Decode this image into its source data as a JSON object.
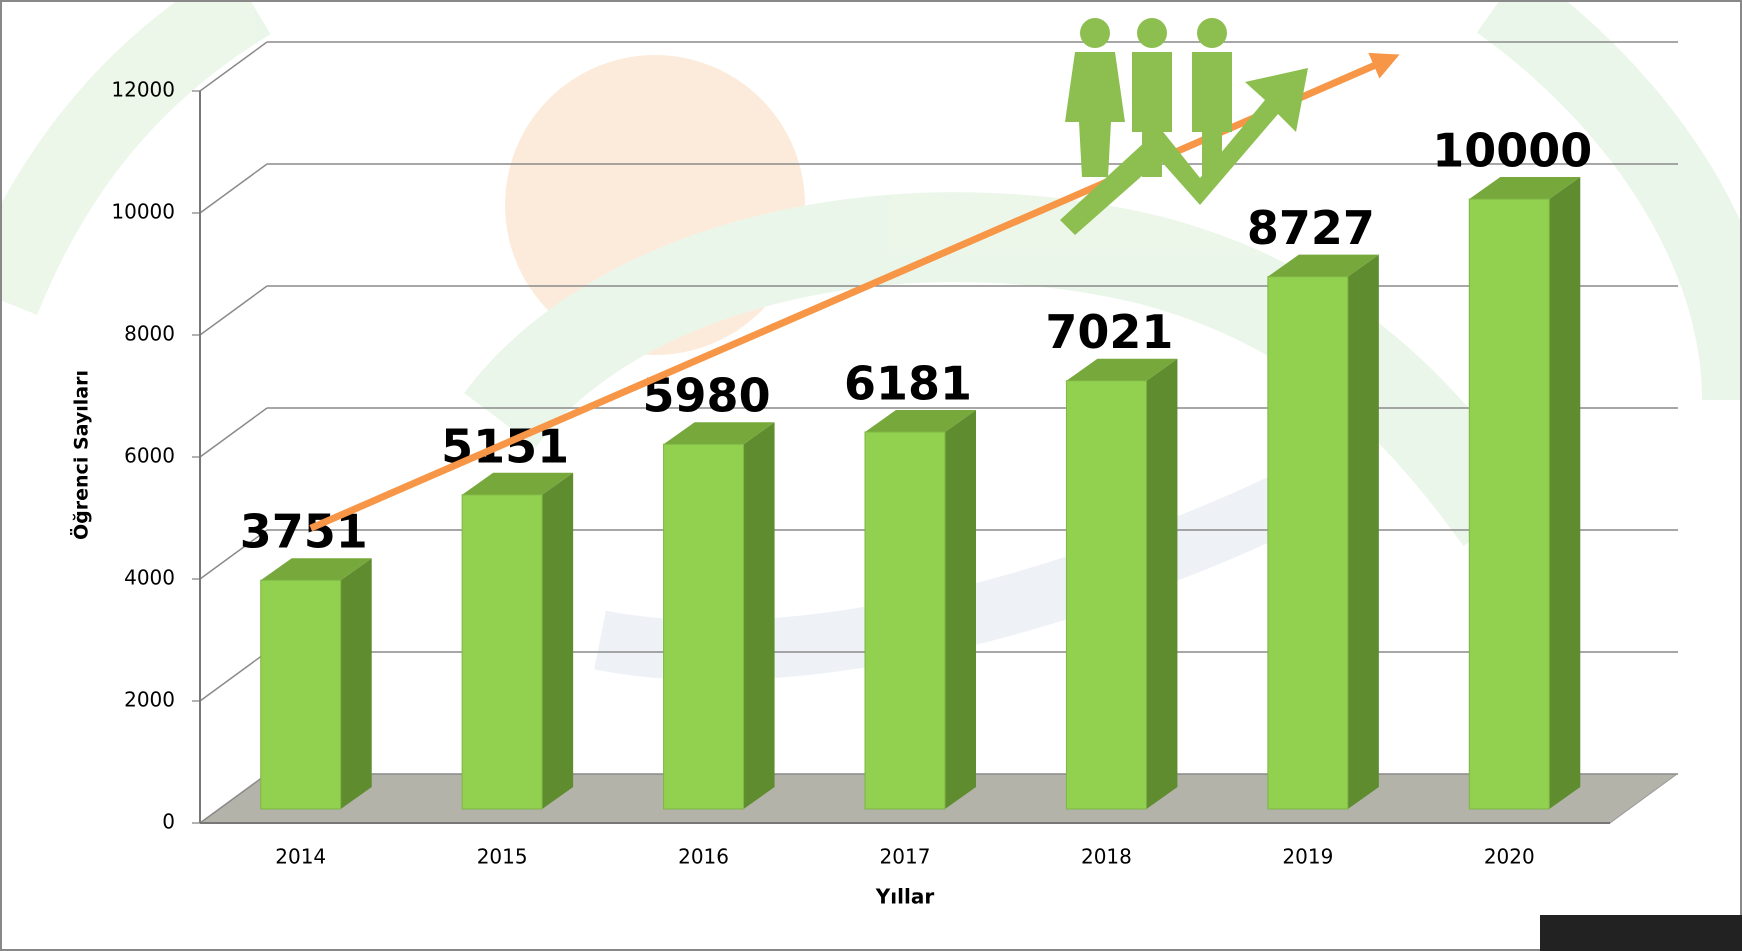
{
  "chart_data": {
    "type": "bar3d",
    "x_label": "Yıllar",
    "y_label": "Öğrenci Sayıları",
    "categories": [
      "2014",
      "2015",
      "2016",
      "2017",
      "2018",
      "2019",
      "2020"
    ],
    "values": [
      3751,
      5151,
      5980,
      6181,
      7021,
      8727,
      10000
    ],
    "color": "#92d050",
    "ylim": [
      0,
      12000
    ],
    "yticks": [
      0,
      2000,
      4000,
      6000,
      8000,
      10000,
      12000
    ],
    "grid": true
  }
}
